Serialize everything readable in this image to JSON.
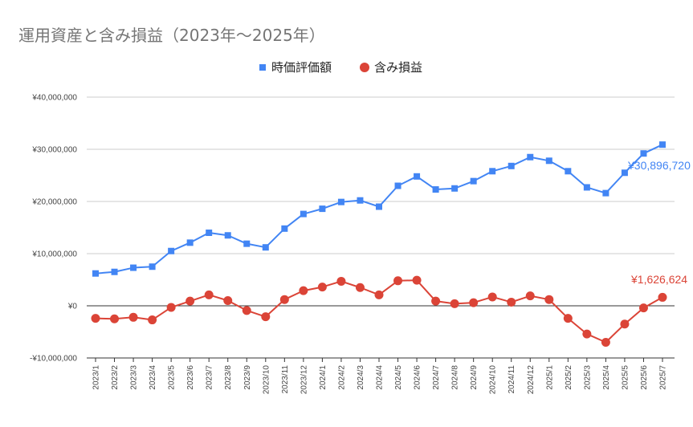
{
  "chart_data": {
    "type": "line",
    "title": "運用資産と含み損益（2023年～2025年）",
    "categories": [
      "2023/1",
      "2023/2",
      "2023/3",
      "2023/4",
      "2023/5",
      "2023/6",
      "2023/7",
      "2023/8",
      "2023/9",
      "2023/10",
      "2023/11",
      "2023/12",
      "2024/1",
      "2024/2",
      "2024/3",
      "2024/4",
      "2024/5",
      "2024/6",
      "2024/7",
      "2024/8",
      "2024/9",
      "2024/10",
      "2024/11",
      "2024/12",
      "2025/1",
      "2025/2",
      "2025/3",
      "2025/4",
      "2025/5",
      "2025/6",
      "2025/7"
    ],
    "series": [
      {
        "name": "時価評価額",
        "color": "#4285f4",
        "marker": "square",
        "values": [
          6200000,
          6500000,
          7300000,
          7500000,
          10500000,
          12100000,
          14000000,
          13500000,
          11900000,
          11200000,
          14800000,
          17600000,
          18600000,
          19900000,
          20200000,
          19000000,
          23000000,
          24800000,
          22300000,
          22500000,
          23900000,
          25800000,
          26800000,
          28500000,
          27800000,
          25800000,
          22700000,
          21600000,
          25500000,
          29200000,
          30896720
        ],
        "end_label": "¥30,896,720"
      },
      {
        "name": "含み損益",
        "color": "#db4437",
        "marker": "circle",
        "values": [
          -2400000,
          -2500000,
          -2200000,
          -2700000,
          -300000,
          900000,
          2100000,
          1000000,
          -900000,
          -2100000,
          1200000,
          2900000,
          3600000,
          4700000,
          3500000,
          2100000,
          4800000,
          4900000,
          900000,
          400000,
          600000,
          1700000,
          700000,
          1900000,
          1200000,
          -2400000,
          -5400000,
          -7000000,
          -3500000,
          -400000,
          1626624
        ],
        "end_label": "¥1,626,624"
      }
    ],
    "ylim": [
      -10000000,
      40000000
    ],
    "y_ticks": [
      -10000000,
      0,
      10000000,
      20000000,
      30000000,
      40000000
    ],
    "y_tick_labels": [
      "-¥10,000,000",
      "¥0",
      "¥10,000,000",
      "¥20,000,000",
      "¥30,000,000",
      "¥40,000,000"
    ],
    "xlabel": "",
    "ylabel": "",
    "grid": true,
    "legend_position": "top"
  }
}
